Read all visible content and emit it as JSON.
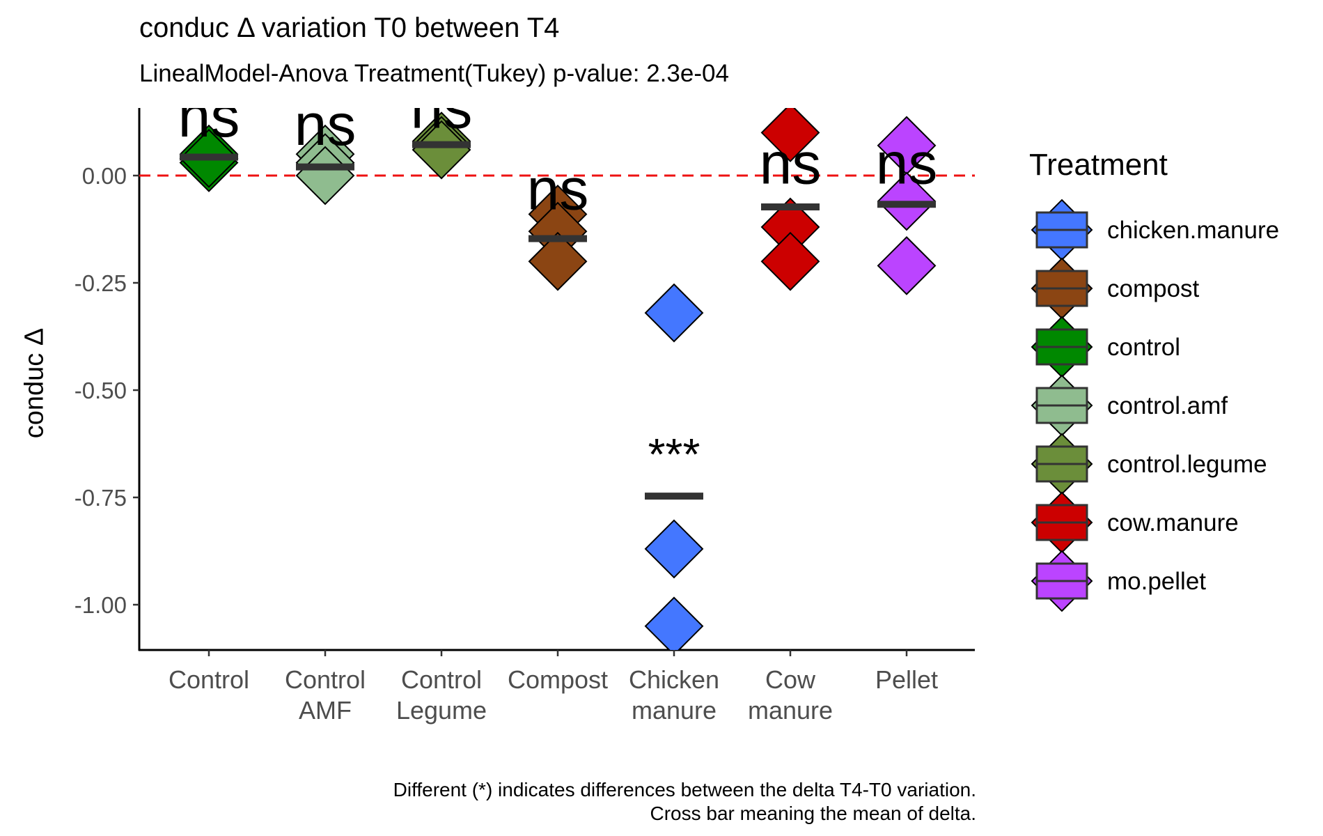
{
  "chart_data": {
    "type": "scatter",
    "title": "conduc Δ variation T0 between T4",
    "subtitle": "LinealModel-Anova Treatment(Tukey) p-value: 2.3e-04",
    "ylabel": "conduc Δ",
    "xlabel": "",
    "ylim": [
      -1.11,
      0.15
    ],
    "y_ticks": [
      "0.00",
      "-0.25",
      "-0.50",
      "-0.75",
      "-1.00"
    ],
    "y_tick_values": [
      0,
      -0.25,
      -0.5,
      -0.75,
      -1.0
    ],
    "reference_line": {
      "y": 0,
      "color": "#ee1111",
      "style": "dashed"
    },
    "grid": false,
    "legend_position": "right",
    "legend_title": "Treatment",
    "categories": [
      {
        "key": "control",
        "label_line1": "Control",
        "label_line2": ""
      },
      {
        "key": "control.amf",
        "label_line1": "Control",
        "label_line2": "AMF"
      },
      {
        "key": "control.legume",
        "label_line1": "Control",
        "label_line2": "Legume"
      },
      {
        "key": "compost",
        "label_line1": "Compost",
        "label_line2": ""
      },
      {
        "key": "chicken.manure",
        "label_line1": "Chicken",
        "label_line2": "manure"
      },
      {
        "key": "cow.manure",
        "label_line1": "Cow",
        "label_line2": "manure"
      },
      {
        "key": "mo.pellet",
        "label_line1": "Pellet",
        "label_line2": ""
      }
    ],
    "series": [
      {
        "category": "control",
        "color": "#008800",
        "points": [
          0.05,
          0.03,
          0.04
        ],
        "mean": 0.043,
        "significance": "ns",
        "label_y": 0.14
      },
      {
        "category": "control.amf",
        "color": "#8fbc8f",
        "points": [
          0.05,
          0.03,
          0.0
        ],
        "mean": 0.02,
        "significance": "ns",
        "label_y": 0.12
      },
      {
        "category": "control.legume",
        "color": "#6b8e3a",
        "points": [
          0.08,
          0.07,
          0.06
        ],
        "mean": 0.072,
        "significance": "ns",
        "label_y": 0.16
      },
      {
        "category": "compost",
        "color": "#8b4513",
        "points": [
          -0.09,
          -0.13,
          -0.2
        ],
        "mean": -0.147,
        "significance": "ns",
        "label_y": -0.03
      },
      {
        "category": "chicken.manure",
        "color": "#4477ff",
        "points": [
          -0.32,
          -0.87,
          -1.05
        ],
        "mean": -0.747,
        "significance": "***",
        "label_y": -0.62
      },
      {
        "category": "cow.manure",
        "color": "#cc0000",
        "points": [
          0.1,
          -0.12,
          -0.2
        ],
        "mean": -0.073,
        "significance": "ns",
        "label_y": 0.03
      },
      {
        "category": "mo.pellet",
        "color": "#bb44ff",
        "points": [
          0.07,
          -0.06,
          -0.21
        ],
        "mean": -0.067,
        "significance": "ns",
        "label_y": 0.03
      }
    ],
    "legend_entries": [
      {
        "label": "chicken.manure",
        "color": "#4477ff"
      },
      {
        "label": "compost",
        "color": "#8b4513"
      },
      {
        "label": "control",
        "color": "#008800"
      },
      {
        "label": "control.amf",
        "color": "#8fbc8f"
      },
      {
        "label": "control.legume",
        "color": "#6b8e3a"
      },
      {
        "label": "cow.manure",
        "color": "#cc0000"
      },
      {
        "label": "mo.pellet",
        "color": "#bb44ff"
      }
    ],
    "caption": [
      "Different (*) indicates differences between the delta T4-T0 variation.",
      "Cross bar meaning the mean of delta."
    ]
  }
}
